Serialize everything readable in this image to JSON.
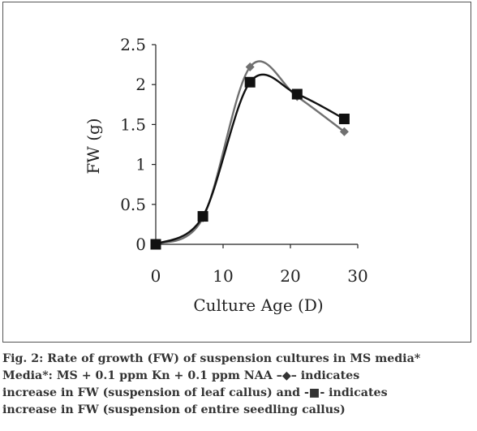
{
  "chart_data": {
    "type": "line",
    "title": "",
    "xlabel": "Culture Age (D)",
    "ylabel": "FW (g)",
    "xlim": [
      0,
      30
    ],
    "ylim": [
      0,
      2.5
    ],
    "xticks": [
      "0",
      "10",
      "20",
      "30"
    ],
    "yticks": [
      "0",
      "0.5",
      "1",
      "1.5",
      "2",
      "2.5"
    ],
    "grid": false,
    "series": [
      {
        "marker": "diamond",
        "color": "#707070",
        "x": [
          0,
          7,
          14,
          21,
          28
        ],
        "y": [
          0,
          0.33,
          2.22,
          1.85,
          1.41
        ]
      },
      {
        "marker": "square",
        "color": "#111111",
        "x": [
          0,
          7,
          14,
          21,
          28
        ],
        "y": [
          0,
          0.35,
          2.03,
          1.88,
          1.57
        ]
      }
    ]
  },
  "caption": {
    "line1": "Fig. 2: Rate of growth (FW) of suspension cultures in MS media*",
    "line2_a": "Media*: MS + 0.1 ppm Kn + 0.1 ppm NAA ",
    "line2_sym": "–◆–",
    "line2_b": " indicates",
    "line3_a": "increase in FW (suspension of leaf callus) and ",
    "line3_sym": "-■-",
    "line3_b": " indicates",
    "line4": "increase in FW (suspension of entire seedling callus)"
  }
}
